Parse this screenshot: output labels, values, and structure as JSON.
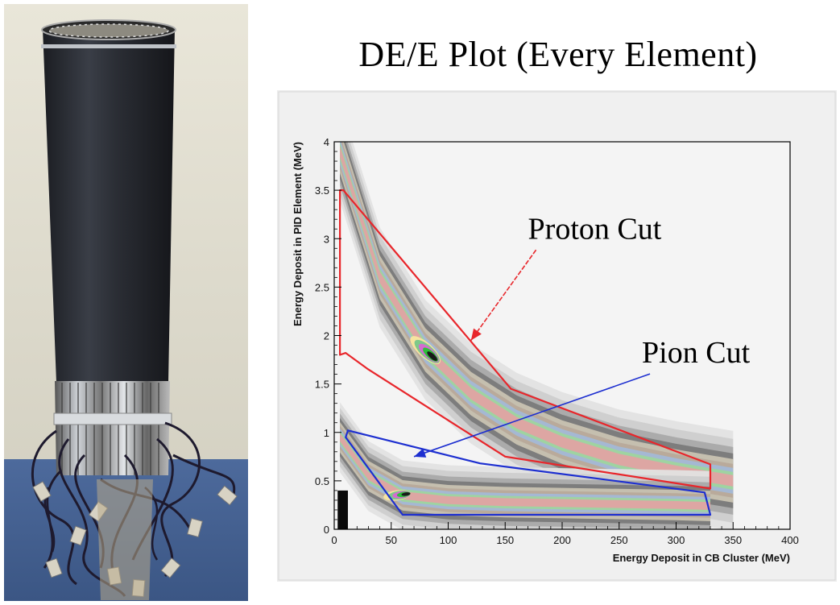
{
  "figure_title": "DE/E Plot (Every Element)",
  "photo": {
    "subject": "PID detector barrel assembly"
  },
  "chart_data": {
    "type": "heatmap",
    "title": "DE/E Plot (Every Element)",
    "xlabel": "Energy Deposit in CB Cluster (MeV)",
    "ylabel": "Energy Deposit in PID Element (MeV)",
    "xlim": [
      0,
      400
    ],
    "ylim": [
      0,
      4
    ],
    "x_ticks": [
      0,
      50,
      100,
      150,
      200,
      250,
      300,
      350,
      400
    ],
    "y_ticks": [
      0,
      0.5,
      1,
      1.5,
      2,
      2.5,
      3,
      3.5,
      4
    ],
    "x_tick_labels": [
      "0",
      "50",
      "100",
      "150",
      "200",
      "250",
      "300",
      "350",
      "400"
    ],
    "y_tick_labels": [
      "0",
      "0.5",
      "1",
      "1.5",
      "2",
      "2.5",
      "3",
      "3.5",
      "4"
    ],
    "grid": false,
    "colors": {
      "proton": "#e8262b",
      "pion": "#1d2fd0"
    },
    "cuts": [
      {
        "name": "Proton Cut",
        "color": "#e8262b",
        "polygon": [
          [
            5,
            3.5
          ],
          [
            8,
            3.5
          ],
          [
            155,
            1.45
          ],
          [
            330,
            0.67
          ],
          [
            330,
            0.42
          ],
          [
            150,
            0.75
          ],
          [
            30,
            1.65
          ],
          [
            10,
            1.82
          ],
          [
            5,
            1.8
          ]
        ]
      },
      {
        "name": "Pion Cut",
        "color": "#1d2fd0",
        "polygon": [
          [
            12,
            1.02
          ],
          [
            128,
            0.68
          ],
          [
            325,
            0.38
          ],
          [
            330,
            0.15
          ],
          [
            60,
            0.15
          ],
          [
            10,
            0.95
          ]
        ]
      }
    ],
    "bands": [
      {
        "particle": "proton",
        "ridge": [
          [
            5,
            3.9
          ],
          [
            40,
            2.6
          ],
          [
            80,
            1.85
          ],
          [
            120,
            1.4
          ],
          [
            160,
            1.1
          ],
          [
            200,
            0.9
          ],
          [
            250,
            0.72
          ],
          [
            300,
            0.6
          ],
          [
            350,
            0.5
          ]
        ],
        "peak": [
          80,
          1.85
        ]
      },
      {
        "particle": "pion",
        "ridge": [
          [
            5,
            0.95
          ],
          [
            30,
            0.55
          ],
          [
            60,
            0.35
          ],
          [
            100,
            0.3
          ],
          [
            150,
            0.28
          ],
          [
            200,
            0.27
          ],
          [
            250,
            0.26
          ],
          [
            300,
            0.25
          ],
          [
            330,
            0.24
          ]
        ],
        "peak": [
          55,
          0.35
        ]
      }
    ],
    "annotations": [
      {
        "text": "Proton Cut",
        "xy": [
          170,
          3.0
        ],
        "arrow_to": [
          120,
          1.95
        ]
      },
      {
        "text": "Pion Cut",
        "xy": [
          270,
          1.72
        ],
        "arrow_to": [
          70,
          0.75
        ]
      }
    ]
  }
}
